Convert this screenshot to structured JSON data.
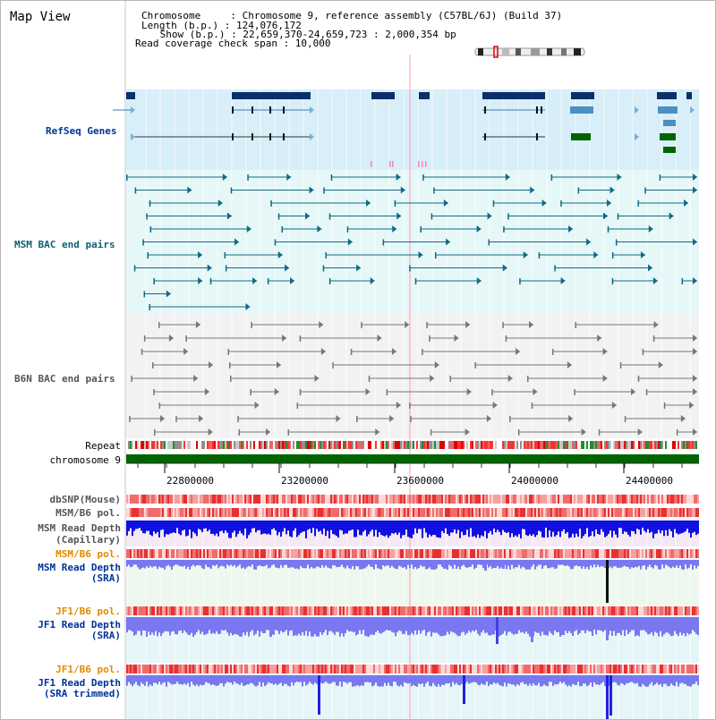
{
  "header": {
    "title": "Map View",
    "info_lines": [
      {
        "key": "Chromosome    ",
        "value": "Chromosome 9, reference assembly (C57BL/6J) (Build 37)"
      },
      {
        "key": "Length (b.p.)",
        "value": "124,076,172"
      },
      {
        "key": " Show (b.p.)",
        "value": "22,659,370-24,659,723 : 2,000,354 bp"
      }
    ],
    "coverage_line": "Read coverage check span : 10,000"
  },
  "tracks": {
    "refseq": "RefSeq Genes",
    "msm_bac": "MSM BAC end pairs",
    "b6n_bac": "B6N BAC end pairs",
    "repeat": "Repeat",
    "chromosome": "chromosome 9",
    "dbsnp": "dbSNP(Mouse)",
    "msm_b6_pol_1": "MSM/B6 pol.",
    "msm_depth_cap_1": "MSM Read Depth",
    "msm_depth_cap_2": "(Capillary)",
    "msm_b6_pol_2": "MSM/B6 pol.",
    "msm_depth_sra_1": "MSM Read Depth",
    "msm_depth_sra_2": "(SRA)",
    "jf1_b6_pol_1": "JF1/B6 pol.",
    "jf1_depth_sra_1": "JF1 Read Depth",
    "jf1_depth_sra_2": "(SRA)",
    "jf1_b6_pol_2": "JF1/B6 pol.",
    "jf1_depth_trim_1": "JF1 Read Depth",
    "jf1_depth_trim_2": "(SRA trimmed)"
  },
  "axis": {
    "ticks": [
      "22800000",
      "23200000",
      "23600000",
      "24000000",
      "24400000"
    ]
  },
  "colors": {
    "refseq_dark": "#0a2f6b",
    "refseq_light": "#4a90c0",
    "refseq_green": "#006400",
    "bac_teal": "#0f6a85",
    "bac_grey": "#777777",
    "chromosome": "#006400",
    "depth_blue": "#1010e0",
    "depth_light": "#7878f0"
  }
}
